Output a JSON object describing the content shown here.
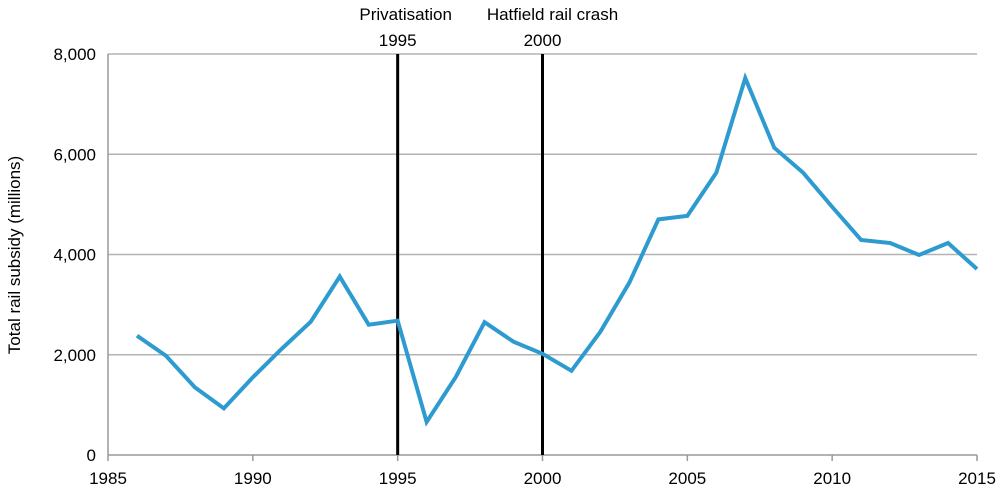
{
  "chart_data": {
    "type": "line",
    "title": "",
    "xlabel": "",
    "ylabel": "Total rail subsidy (millions)",
    "xlim": [
      1985,
      2015
    ],
    "ylim": [
      0,
      8000
    ],
    "grid": "horizontal",
    "x_ticks": [
      "1985",
      "1990",
      "1995",
      "2000",
      "2005",
      "2010",
      "2015"
    ],
    "y_ticks": [
      "0",
      "2,000",
      "4,000",
      "6,000",
      "8,000"
    ],
    "line_color": "#2e9bd0",
    "x": [
      1986,
      1987,
      1988,
      1989,
      1990,
      1991,
      1992,
      1993,
      1994,
      1995,
      1996,
      1997,
      1998,
      1999,
      2000,
      2001,
      2002,
      2003,
      2004,
      2005,
      2006,
      2007,
      2008,
      2009,
      2010,
      2011,
      2012,
      2013,
      2014,
      2015
    ],
    "series": [
      {
        "values": [
          2380,
          1980,
          1350,
          930,
          1550,
          2120,
          2660,
          3560,
          2600,
          2680,
          660,
          1550,
          2650,
          2260,
          2020,
          1680,
          2460,
          3440,
          4700,
          4770,
          5630,
          7520,
          6130,
          5630,
          4950,
          4290,
          4230,
          3990,
          4230,
          3710
        ]
      }
    ],
    "annotations": [
      {
        "x": 1995,
        "label": "Privatisation",
        "year_label": "1995"
      },
      {
        "x": 2000,
        "label": "Hatfield rail crash",
        "year_label": "2000"
      }
    ]
  }
}
